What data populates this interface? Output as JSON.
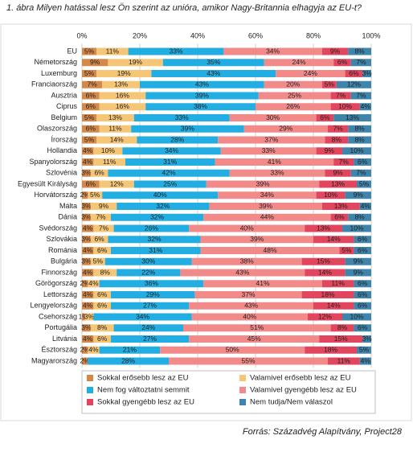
{
  "chart_data": {
    "type": "stacked-bar-horizontal",
    "title": "1.   ábra Milyen hatással lesz Ön szerint az unióra, amikor Nagy-Britannia elhagyja az EU-t?",
    "source": "Forrás: Századvég Alapítvány, Project28",
    "categories": [
      "EU",
      "Németország",
      "Luxemburg",
      "Franciaország",
      "Ausztria",
      "Ciprus",
      "Belgium",
      "Olaszország",
      "Írország",
      "Hollandia",
      "Spanyolország",
      "Szlovénia",
      "Egyesült Királyság",
      "Horvátország",
      "Málta",
      "Dánia",
      "Svédország",
      "Szlovákia",
      "Románia",
      "Bulgária",
      "Finnország",
      "Görögország",
      "Lettország",
      "Lengyelország",
      "Csehország",
      "Portugália",
      "Litvánia",
      "Észtország",
      "Magyarország"
    ],
    "xlim": [
      0,
      100
    ],
    "xticks": [
      {
        "value": 0,
        "label": "0%"
      },
      {
        "value": 20,
        "label": "20%"
      },
      {
        "value": 40,
        "label": "40%"
      },
      {
        "value": 60,
        "label": "60%"
      },
      {
        "value": 80,
        "label": "80%"
      },
      {
        "value": 100,
        "label": "100%"
      }
    ],
    "grid": true,
    "series": [
      {
        "name": "Sokkal erősebb lesz az EU",
        "color": "#d4894a",
        "values": [
          5,
          9,
          5,
          7,
          6,
          6,
          5,
          6,
          5,
          4,
          4,
          3,
          6,
          2,
          3,
          3,
          4,
          3,
          4,
          3,
          4,
          2,
          4,
          4,
          1,
          3,
          4,
          2,
          2
        ],
        "value_labels": [
          "5%",
          "9%",
          "5%",
          "7%",
          "6%",
          "6%",
          "5%",
          "6%",
          "5%",
          "4%",
          "4%",
          "3%",
          "6%",
          "2%",
          "3%",
          "3%",
          "4%",
          "3%",
          "4%",
          "3%",
          "4%",
          "2%",
          "4%",
          "4%",
          "1%",
          "3%",
          "4%",
          "2%",
          "2%"
        ]
      },
      {
        "name": "Valamivel erősebb lesz az EU",
        "color": "#f6c677",
        "values": [
          11,
          19,
          19,
          13,
          16,
          16,
          13,
          11,
          14,
          10,
          11,
          6,
          12,
          5,
          9,
          7,
          7,
          6,
          6,
          5,
          8,
          4,
          6,
          6,
          3,
          8,
          6,
          4,
          0
        ],
        "value_labels": [
          "11%",
          "19%",
          "19%",
          "13%",
          "16%",
          "16%",
          "13%",
          "11%",
          "14%",
          "10%",
          "11%",
          "6%",
          "12%",
          "5%",
          "9%",
          "7%",
          "7%",
          "6%",
          "6%",
          "5%",
          "8%",
          "4%",
          "6%",
          "6%",
          "3%",
          "8%",
          "6%",
          "4%",
          null
        ]
      },
      {
        "name": "Nem fog változtatni semmit",
        "color": "#22aee3",
        "values": [
          33,
          35,
          43,
          43,
          39,
          38,
          33,
          39,
          28,
          34,
          31,
          42,
          25,
          40,
          32,
          32,
          26,
          32,
          31,
          30,
          22,
          36,
          29,
          27,
          34,
          24,
          27,
          21,
          28
        ],
        "value_labels": [
          "33%",
          "35%",
          "43%",
          "43%",
          "39%",
          "38%",
          "33%",
          "39%",
          "28%",
          "34%",
          "31%",
          "42%",
          "25%",
          "40%",
          "32%",
          "32%",
          "26%",
          "32%",
          "31%",
          "30%",
          "22%",
          "36%",
          "29%",
          "27%",
          "34%",
          "24%",
          "27%",
          "21%",
          "28%"
        ]
      },
      {
        "name": "Valamivel gyengébb lesz az EU",
        "color": "#f28a8a",
        "values": [
          34,
          24,
          24,
          20,
          25,
          26,
          30,
          29,
          37,
          33,
          41,
          33,
          39,
          34,
          39,
          44,
          40,
          39,
          48,
          38,
          43,
          41,
          37,
          43,
          40,
          51,
          45,
          50,
          55
        ],
        "value_labels": [
          "34%",
          "24%",
          "24%",
          "20%",
          "25%",
          "26%",
          "30%",
          "29%",
          "37%",
          "33%",
          "41%",
          "33%",
          "39%",
          "34%",
          "39%",
          "44%",
          "40%",
          "39%",
          "48%",
          "38%",
          "43%",
          "41%",
          "37%",
          "43%",
          "40%",
          "51%",
          "45%",
          "50%",
          "55%"
        ]
      },
      {
        "name": "Sokkal gyengébb lesz az EU",
        "color": "#e2465e",
        "values": [
          9,
          6,
          6,
          5,
          7,
          10,
          6,
          7,
          8,
          9,
          7,
          9,
          13,
          10,
          13,
          6,
          13,
          14,
          5,
          15,
          14,
          11,
          18,
          14,
          12,
          8,
          15,
          18,
          11
        ],
        "value_labels": [
          "9%",
          "6%",
          "6%",
          "5%",
          "7%",
          "10%",
          "6%",
          "7%",
          "8%",
          "9%",
          "7%",
          "9%",
          "13%",
          "10%",
          "13%",
          "6%",
          "13%",
          "14%",
          "5%",
          "15%",
          "14%",
          "11%",
          "18%",
          "14%",
          "12%",
          "8%",
          "15%",
          "18%",
          "11%"
        ]
      },
      {
        "name": "Nem tudja/Nem válaszol",
        "color": "#3f84aa",
        "values": [
          8,
          7,
          3,
          12,
          7,
          4,
          13,
          8,
          8,
          10,
          6,
          7,
          5,
          9,
          4,
          8,
          10,
          6,
          6,
          9,
          9,
          6,
          6,
          6,
          10,
          6,
          3,
          5,
          4
        ],
        "value_labels": [
          "8%",
          "7%",
          "3%",
          "12%",
          "7%",
          "4%",
          "13%",
          "8%",
          "8%",
          "10%",
          "6%",
          "7%",
          "5%",
          "9%",
          "4%",
          "8%",
          "10%",
          "6%",
          "6%",
          "9%",
          "9%",
          "6%",
          "6%",
          "6%",
          "10%",
          "6%",
          "3%",
          "5%",
          "4%"
        ]
      }
    ]
  }
}
